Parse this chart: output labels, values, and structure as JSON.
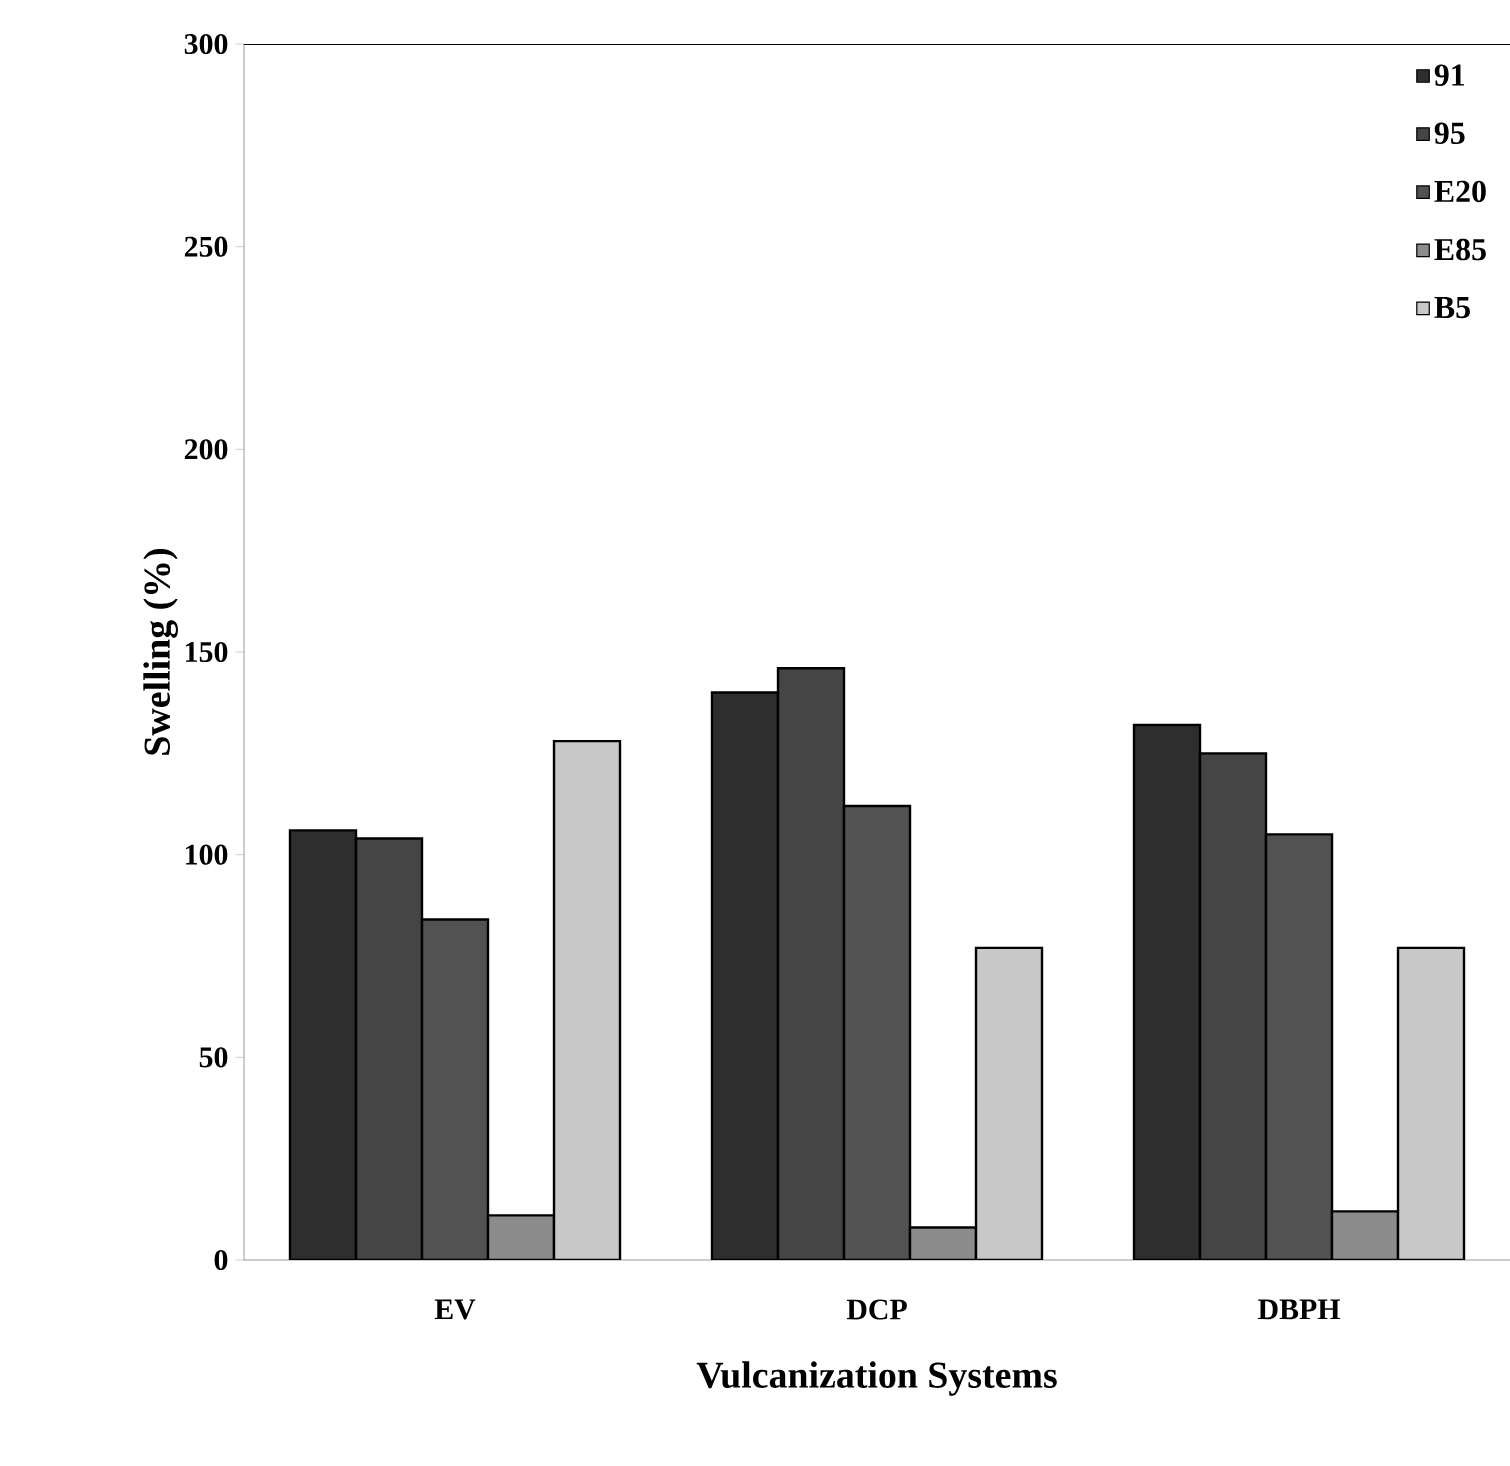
{
  "chart_data": {
    "type": "bar",
    "xlabel": "Vulcanization Systems",
    "ylabel": "Swelling (%)",
    "categories": [
      "EV",
      "DCP",
      "DBPH"
    ],
    "series": [
      {
        "name": "91",
        "color": "#2e2e2e",
        "values": [
          106,
          140,
          132
        ]
      },
      {
        "name": "95",
        "color": "#454545",
        "values": [
          104,
          146,
          125
        ]
      },
      {
        "name": "E20",
        "color": "#525252",
        "values": [
          84,
          112,
          105
        ]
      },
      {
        "name": "E85",
        "color": "#8c8c8c",
        "values": [
          11,
          8,
          12
        ]
      },
      {
        "name": "B5",
        "color": "#c8c8c8",
        "values": [
          128,
          77,
          77
        ]
      }
    ],
    "ylim": [
      0,
      300
    ],
    "yticks": [
      0,
      50,
      100,
      150,
      200,
      250,
      300
    ],
    "legend": "top right",
    "grid": false
  }
}
